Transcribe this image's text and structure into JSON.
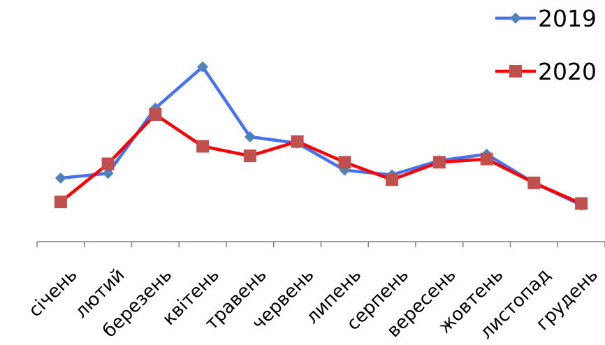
{
  "chart_data": {
    "type": "line",
    "categories": [
      "січень",
      "лютий",
      "березень",
      "квітень",
      "травень",
      "червень",
      "липень",
      "серпень",
      "вересень",
      "жовтень",
      "листопад",
      "грудень"
    ],
    "series": [
      {
        "name": "2019",
        "color": "#4472f0",
        "marker": "diamond",
        "marker_color": "#4f81bd",
        "values": [
          20,
          21.5,
          42,
          55,
          33,
          31,
          22.5,
          21,
          25.5,
          27.5,
          18.5,
          11.5
        ]
      },
      {
        "name": "2020",
        "color": "#ff0000",
        "marker": "square",
        "marker_color": "#c0504d",
        "values": [
          12.5,
          24.5,
          40,
          30,
          27,
          31.5,
          25,
          19.5,
          25,
          26,
          18.5,
          12
        ]
      }
    ],
    "title": "",
    "xlabel": "",
    "ylabel": "",
    "ylim": [
      0,
      70
    ],
    "grid": false,
    "legend": "top-right"
  }
}
